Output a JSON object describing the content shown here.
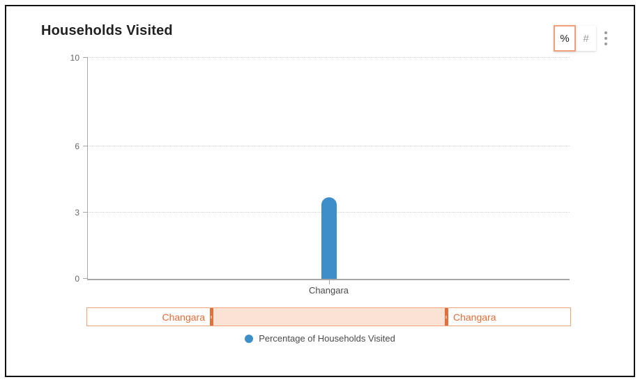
{
  "header": {
    "title": "Households Visited"
  },
  "toolbar": {
    "percent_label": "%",
    "count_label": "#",
    "menu_icon": "kebab-vertical-icon"
  },
  "chart_data": {
    "type": "bar",
    "title": "Households Visited",
    "categories": [
      "Changara"
    ],
    "series": [
      {
        "name": "Percentage of Households Visited",
        "values": [
          3.7
        ],
        "color": "#3e8ec9"
      }
    ],
    "xlabel": "",
    "ylabel": "",
    "ylim": [
      0,
      10
    ],
    "yticks": [
      0,
      3,
      6,
      10
    ],
    "grid": "dotted-horizontal",
    "legend_position": "bottom-center"
  },
  "navigator": {
    "left_label": "Changara",
    "right_label": "Changara",
    "accent_color": "#e2703c",
    "selection_fill": "#fae3d5"
  },
  "legend": {
    "items": [
      {
        "label": "Percentage of Households Visited",
        "color": "#3e8ec9"
      }
    ]
  }
}
